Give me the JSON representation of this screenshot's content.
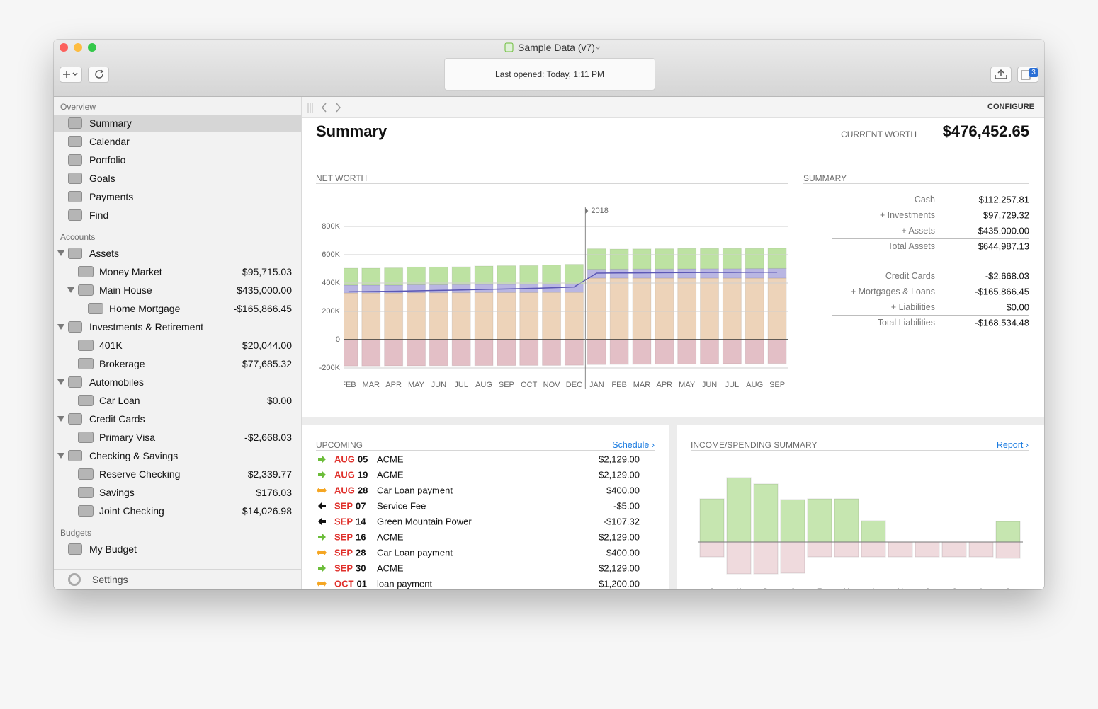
{
  "window": {
    "title": "Sample Data (v7)",
    "status": "Last opened: Today, 1:11 PM",
    "badge": "3"
  },
  "sidebar": {
    "overview_heading": "Overview",
    "overview": [
      "Summary",
      "Calendar",
      "Portfolio",
      "Goals",
      "Payments",
      "Find"
    ],
    "accounts_heading": "Accounts",
    "accounts": [
      {
        "name": "Assets",
        "children": [
          {
            "name": "Money Market",
            "amount": "$95,715.03"
          },
          {
            "name": "Main House",
            "amount": "$435,000.00",
            "children": [
              {
                "name": "Home Mortgage",
                "amount": "-$165,866.45"
              }
            ]
          }
        ]
      },
      {
        "name": "Investments & Retirement",
        "children": [
          {
            "name": "401K",
            "amount": "$20,044.00"
          },
          {
            "name": "Brokerage",
            "amount": "$77,685.32"
          }
        ]
      },
      {
        "name": "Automobiles",
        "children": [
          {
            "name": "Car Loan",
            "amount": "$0.00"
          }
        ]
      },
      {
        "name": "Credit Cards",
        "children": [
          {
            "name": "Primary Visa",
            "amount": "-$2,668.03"
          }
        ]
      },
      {
        "name": "Checking & Savings",
        "children": [
          {
            "name": "Reserve Checking",
            "amount": "$2,339.77"
          },
          {
            "name": "Savings",
            "amount": "$176.03"
          },
          {
            "name": "Joint Checking",
            "amount": "$14,026.98"
          }
        ]
      }
    ],
    "budgets_heading": "Budgets",
    "budgets": [
      "My Budget"
    ],
    "settings": "Settings"
  },
  "toolbar": {
    "configure": "CONFIGURE"
  },
  "header": {
    "title": "Summary",
    "worth_label": "CURRENT WORTH",
    "worth": "$476,452.65"
  },
  "net_worth": {
    "type": "bar",
    "title": "NET WORTH",
    "annotation": {
      "label": "2018",
      "category": 11
    },
    "categories": [
      "FEB",
      "MAR",
      "APR",
      "MAY",
      "JUN",
      "JUL",
      "AUG",
      "SEP",
      "OCT",
      "NOV",
      "DEC",
      "JAN",
      "FEB",
      "MAR",
      "APR",
      "MAY",
      "JUN",
      "JUL",
      "AUG",
      "SEP"
    ],
    "series": [
      {
        "color": "#edd3b9",
        "values": [
          330000,
          330000,
          330000,
          332000,
          332000,
          332000,
          333000,
          333000,
          333000,
          334000,
          334000,
          435000,
          435000,
          435000,
          435000,
          435000,
          435000,
          435000,
          435000,
          435000
        ]
      },
      {
        "color": "#b9b6e2",
        "values": [
          55000,
          55000,
          55000,
          56000,
          56000,
          57000,
          58000,
          58000,
          59000,
          60000,
          60000,
          62000,
          63000,
          64000,
          64000,
          65000,
          66000,
          66000,
          67000,
          68000
        ]
      },
      {
        "color": "#bde2a2",
        "values": [
          120000,
          120000,
          122000,
          125000,
          125000,
          126000,
          129000,
          131000,
          131000,
          133000,
          138000,
          145000,
          142000,
          142000,
          143000,
          144000,
          143000,
          143000,
          142000,
          143000
        ]
      },
      {
        "color": "#e3bfc6",
        "values": [
          -186000,
          -186000,
          -185000,
          -185000,
          -184000,
          -184000,
          -183000,
          -183000,
          -182000,
          -182000,
          -181000,
          -176000,
          -175000,
          -174000,
          -173000,
          -172000,
          -171000,
          -170000,
          -169000,
          -168534
        ]
      },
      {
        "type": "line",
        "color": "#5b57b5",
        "values": [
          338000,
          340000,
          342000,
          345000,
          348000,
          351000,
          355000,
          358000,
          362000,
          366000,
          372000,
          470000,
          471000,
          472000,
          473000,
          474000,
          475000,
          475000,
          476000,
          476000
        ]
      }
    ],
    "ylim": [
      -200000,
      800000
    ],
    "yticks": [
      {
        "value": -200000,
        "label": "-200K"
      },
      0,
      {
        "value": 200000,
        "label": "200K"
      },
      {
        "value": 400000,
        "label": "400K"
      },
      {
        "value": 600000,
        "label": "600K"
      },
      {
        "value": 800000,
        "label": "800K"
      }
    ],
    "grid": true
  },
  "summary": {
    "title": "SUMMARY",
    "groups": [
      {
        "rows": [
          [
            "Cash",
            "$112,257.81"
          ],
          [
            "+ Investments",
            "$97,729.32"
          ],
          [
            "+ Assets",
            "$435,000.00"
          ]
        ],
        "total": [
          "Total Assets",
          "$644,987.13"
        ]
      },
      {
        "rows": [
          [
            "Credit Cards",
            "-$2,668.03"
          ],
          [
            "+ Mortgages & Loans",
            "-$165,866.45"
          ],
          [
            "+ Liabilities",
            "$0.00"
          ]
        ],
        "total": [
          "Total Liabilities",
          "-$168,534.48"
        ]
      }
    ]
  },
  "upcoming": {
    "title": "UPCOMING",
    "link": "Schedule ›",
    "rows": [
      {
        "month": "AUG",
        "day": "05",
        "payee": "ACME",
        "amount": "$2,129.00",
        "arrow": "right",
        "color": "#6cbd3a"
      },
      {
        "month": "AUG",
        "day": "19",
        "payee": "ACME",
        "amount": "$2,129.00",
        "arrow": "right",
        "color": "#6cbd3a"
      },
      {
        "month": "AUG",
        "day": "28",
        "payee": "Car  Loan payment",
        "amount": "$400.00",
        "arrow": "both",
        "color": "#f5a623"
      },
      {
        "month": "SEP",
        "day": "07",
        "payee": "Service Fee",
        "amount": "-$5.00",
        "arrow": "left",
        "color": "#111111"
      },
      {
        "month": "SEP",
        "day": "14",
        "payee": "Green Mountain Power",
        "amount": "-$107.32",
        "arrow": "left",
        "color": "#111111"
      },
      {
        "month": "SEP",
        "day": "16",
        "payee": "ACME",
        "amount": "$2,129.00",
        "arrow": "right",
        "color": "#6cbd3a"
      },
      {
        "month": "SEP",
        "day": "28",
        "payee": "Car  Loan payment",
        "amount": "$400.00",
        "arrow": "both",
        "color": "#f5a623"
      },
      {
        "month": "SEP",
        "day": "30",
        "payee": "ACME",
        "amount": "$2,129.00",
        "arrow": "right",
        "color": "#6cbd3a"
      },
      {
        "month": "OCT",
        "day": "01",
        "payee": "loan payment",
        "amount": "$1,200.00",
        "arrow": "both",
        "color": "#f5a623"
      }
    ]
  },
  "income_spending": {
    "type": "bar",
    "title": "INCOME/SPENDING SUMMARY",
    "link": "Report ›",
    "categories": [
      "O",
      "N",
      "D",
      "J",
      "F",
      "M",
      "A",
      "M",
      "J",
      "J",
      "A",
      "S"
    ],
    "series": [
      {
        "color": "#c6e6b0",
        "values": [
          61,
          91,
          82,
          60,
          61,
          61,
          30,
          0,
          0,
          0,
          0,
          29
        ]
      },
      {
        "color": "#efdadd",
        "values": [
          -21,
          -45,
          -45,
          -44,
          -21,
          -21,
          -21,
          -21,
          -21,
          -21,
          -21,
          -23
        ]
      }
    ],
    "ylim": [
      -50,
      100
    ]
  }
}
